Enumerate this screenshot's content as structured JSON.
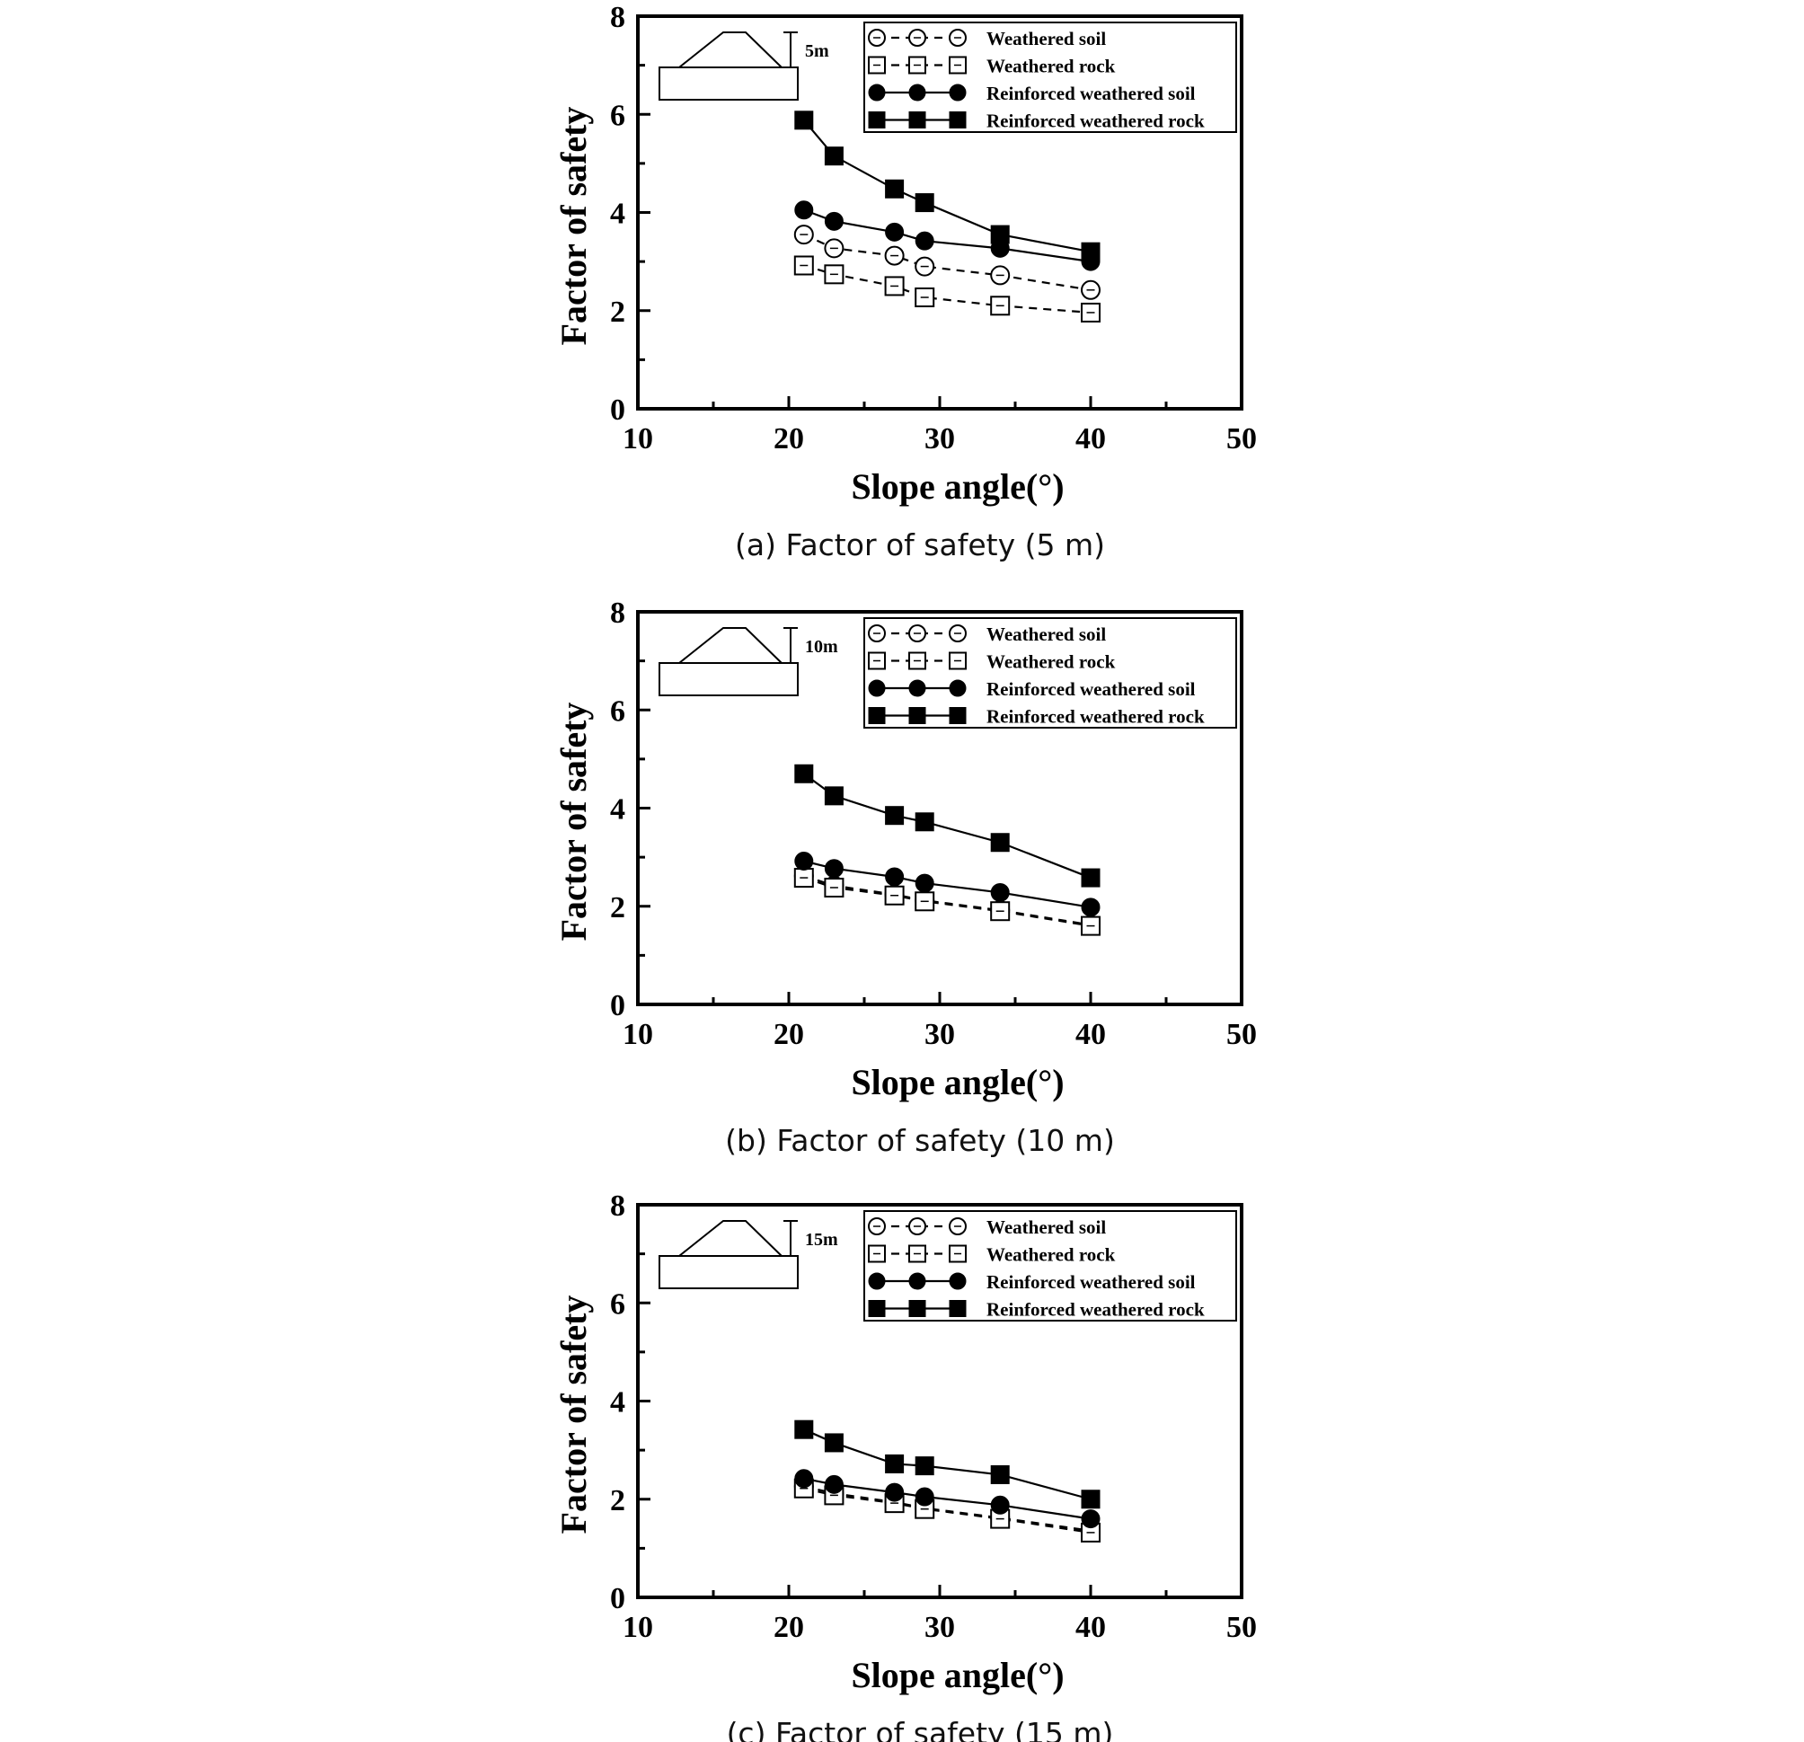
{
  "chart_data": [
    {
      "type": "line",
      "caption": "(a) Factor of safety (5 m)",
      "inset_label": "5m",
      "xlabel": "Slope angle(°)",
      "ylabel": "Factor of safety",
      "xlim": [
        10,
        50
      ],
      "ylim": [
        0,
        8
      ],
      "xticks": [
        "10",
        "20",
        "30",
        "40",
        "50"
      ],
      "yticks": [
        "0",
        "2",
        "4",
        "6",
        "8"
      ],
      "legend_position": "top-right",
      "x": [
        21,
        23,
        27,
        29,
        34,
        40
      ],
      "series": [
        {
          "name": "Weathered soil",
          "marker": "circle",
          "fill": "open",
          "line": "dashed",
          "values": [
            3.55,
            3.27,
            3.12,
            2.9,
            2.72,
            2.42
          ]
        },
        {
          "name": "Weathered rock",
          "marker": "square",
          "fill": "open",
          "line": "dashed",
          "values": [
            2.92,
            2.74,
            2.5,
            2.27,
            2.1,
            1.96
          ]
        },
        {
          "name": "Reinforced weathered soil",
          "marker": "circle",
          "fill": "filled",
          "line": "solid",
          "values": [
            4.05,
            3.82,
            3.6,
            3.42,
            3.27,
            3.0
          ]
        },
        {
          "name": "Reinforced weathered rock",
          "marker": "square",
          "fill": "filled",
          "line": "solid",
          "values": [
            5.88,
            5.15,
            4.48,
            4.2,
            3.55,
            3.2
          ]
        }
      ]
    },
    {
      "type": "line",
      "caption": "(b) Factor of safety (10 m)",
      "inset_label": "10m",
      "xlabel": "Slope angle(°)",
      "ylabel": "Factor of safety",
      "xlim": [
        10,
        50
      ],
      "ylim": [
        0,
        8
      ],
      "xticks": [
        "10",
        "20",
        "30",
        "40",
        "50"
      ],
      "yticks": [
        "0",
        "2",
        "4",
        "6",
        "8"
      ],
      "legend_position": "top-right",
      "x": [
        21,
        23,
        27,
        29,
        34,
        40
      ],
      "series": [
        {
          "name": "Weathered soil",
          "marker": "circle",
          "fill": "open",
          "line": "dashed",
          "values": [
            2.62,
            2.42,
            2.24,
            2.12,
            1.92,
            1.62
          ]
        },
        {
          "name": "Weathered rock",
          "marker": "square",
          "fill": "open",
          "line": "dashed",
          "values": [
            2.58,
            2.38,
            2.22,
            2.1,
            1.9,
            1.6
          ]
        },
        {
          "name": "Reinforced weathered soil",
          "marker": "circle",
          "fill": "filled",
          "line": "solid",
          "values": [
            2.92,
            2.77,
            2.6,
            2.47,
            2.28,
            1.98
          ]
        },
        {
          "name": "Reinforced weathered rock",
          "marker": "square",
          "fill": "filled",
          "line": "solid",
          "values": [
            4.7,
            4.25,
            3.85,
            3.72,
            3.3,
            2.58
          ]
        }
      ]
    },
    {
      "type": "line",
      "caption": "(c) Factor of safety (15 m)",
      "inset_label": "15m",
      "xlabel": "Slope angle(°)",
      "ylabel": "Factor of safety",
      "xlim": [
        10,
        50
      ],
      "ylim": [
        0,
        8
      ],
      "xticks": [
        "10",
        "20",
        "30",
        "40",
        "50"
      ],
      "yticks": [
        "0",
        "2",
        "4",
        "6",
        "8"
      ],
      "legend_position": "top-right",
      "x": [
        21,
        23,
        27,
        29,
        34,
        40
      ],
      "series": [
        {
          "name": "Weathered soil",
          "marker": "circle",
          "fill": "open",
          "line": "dashed",
          "values": [
            2.26,
            2.12,
            1.94,
            1.82,
            1.62,
            1.36
          ]
        },
        {
          "name": "Weathered rock",
          "marker": "square",
          "fill": "open",
          "line": "dashed",
          "values": [
            2.22,
            2.08,
            1.92,
            1.8,
            1.6,
            1.32
          ]
        },
        {
          "name": "Reinforced weathered soil",
          "marker": "circle",
          "fill": "filled",
          "line": "solid",
          "values": [
            2.42,
            2.3,
            2.14,
            2.05,
            1.88,
            1.6
          ]
        },
        {
          "name": "Reinforced weathered rock",
          "marker": "square",
          "fill": "filled",
          "line": "solid",
          "values": [
            3.42,
            3.15,
            2.72,
            2.68,
            2.5,
            2.0
          ]
        }
      ]
    }
  ]
}
